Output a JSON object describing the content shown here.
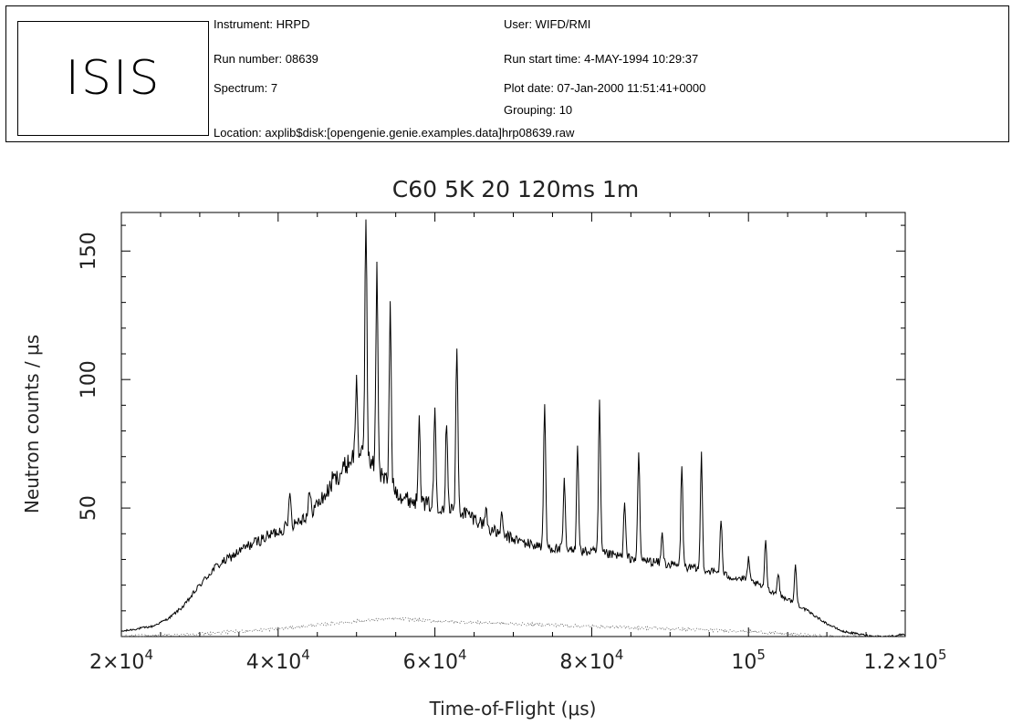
{
  "header": {
    "logo": "ISIS",
    "instrument": "Instrument: HRPD",
    "run_number": "Run number: 08639",
    "spectrum": "Spectrum: 7",
    "location": "Location: axplib$disk:[opengenie.genie.examples.data]hrp08639.raw",
    "user": "User: WIFD/RMI",
    "run_start": "Run start time:  4-MAY-1994 10:29:37",
    "plot_date": "Plot date: 07-Jan-2000 11:51:41+0000",
    "grouping": "Grouping: 10"
  },
  "chart_data": {
    "type": "line",
    "title": "C60 5K 20  120ms 1m",
    "xlabel": "Time-of-Flight (μs)",
    "ylabel": "Neutron counts / μs",
    "xlim": [
      20000,
      120000
    ],
    "ylim": [
      0,
      165
    ],
    "xticks": [
      {
        "value": 20000,
        "mantissa": "2×10",
        "exp": "4"
      },
      {
        "value": 40000,
        "mantissa": "4×10",
        "exp": "4"
      },
      {
        "value": 60000,
        "mantissa": "6×10",
        "exp": "4"
      },
      {
        "value": 80000,
        "mantissa": "8×10",
        "exp": "4"
      },
      {
        "value": 100000,
        "mantissa": "10",
        "exp": "5"
      },
      {
        "value": 120000,
        "mantissa": "1.2×10",
        "exp": "5"
      }
    ],
    "yticks": [
      50,
      100,
      150
    ],
    "grid": false,
    "series": [
      {
        "style": "solid",
        "x": [
          20000,
          22000,
          24000,
          26000,
          28000,
          30000,
          32000,
          34000,
          36000,
          38000,
          40000,
          42000,
          44000,
          46000,
          48000,
          50000,
          52000,
          54000,
          56000,
          58000,
          60000,
          62000,
          64000,
          66000,
          68000,
          70000,
          72000,
          74000,
          76000,
          78000,
          80000,
          82000,
          84000,
          86000,
          88000,
          90000,
          92000,
          94000,
          96000,
          98000,
          100000,
          102000,
          104000,
          106000,
          108000,
          110000,
          112000,
          114000,
          116000,
          118000,
          120000
        ],
        "y": [
          2,
          3,
          4,
          7,
          12,
          20,
          27,
          31,
          35,
          38,
          41,
          44,
          48,
          55,
          64,
          72,
          67,
          60,
          54,
          52,
          51,
          50,
          48,
          44,
          40,
          38,
          36,
          35,
          34,
          33,
          33,
          32,
          31,
          30,
          29,
          28,
          27,
          26,
          25,
          23,
          22,
          19,
          16,
          13,
          9,
          5,
          2,
          1,
          0,
          0,
          1
        ]
      },
      {
        "style": "dotted",
        "x": [
          20000,
          30000,
          40000,
          50000,
          55000,
          60000,
          70000,
          80000,
          90000,
          100000,
          105000,
          110000,
          115000,
          120000
        ],
        "y": [
          0,
          1,
          3,
          6,
          7,
          6,
          5,
          4,
          3,
          2,
          1,
          0,
          0,
          0
        ]
      }
    ],
    "peaks": [
      {
        "x": 41500,
        "y": 58
      },
      {
        "x": 44000,
        "y": 56
      },
      {
        "x": 47000,
        "y": 62
      },
      {
        "x": 50000,
        "y": 100
      },
      {
        "x": 51200,
        "y": 165
      },
      {
        "x": 52600,
        "y": 145
      },
      {
        "x": 54300,
        "y": 128
      },
      {
        "x": 58000,
        "y": 88
      },
      {
        "x": 60000,
        "y": 88
      },
      {
        "x": 61500,
        "y": 85
      },
      {
        "x": 62800,
        "y": 113
      },
      {
        "x": 66500,
        "y": 50
      },
      {
        "x": 68500,
        "y": 47
      },
      {
        "x": 74000,
        "y": 91
      },
      {
        "x": 76500,
        "y": 60
      },
      {
        "x": 78200,
        "y": 76
      },
      {
        "x": 81000,
        "y": 91
      },
      {
        "x": 84200,
        "y": 52
      },
      {
        "x": 86000,
        "y": 72
      },
      {
        "x": 89000,
        "y": 40
      },
      {
        "x": 91500,
        "y": 67
      },
      {
        "x": 94000,
        "y": 71
      },
      {
        "x": 96500,
        "y": 46
      },
      {
        "x": 100000,
        "y": 30
      },
      {
        "x": 102200,
        "y": 38
      },
      {
        "x": 103800,
        "y": 25
      },
      {
        "x": 106000,
        "y": 28
      }
    ]
  }
}
